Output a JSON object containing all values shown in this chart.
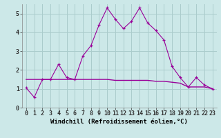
{
  "xlabel": "Windchill (Refroidissement éolien,°C)",
  "background_color": "#cce8e8",
  "grid_color": "#aacccc",
  "line_color": "#990099",
  "x_values": [
    0,
    1,
    2,
    3,
    4,
    5,
    6,
    7,
    8,
    9,
    10,
    11,
    12,
    13,
    14,
    15,
    16,
    17,
    18,
    19,
    20,
    21,
    22,
    23
  ],
  "y1_values": [
    1.05,
    0.55,
    1.5,
    1.5,
    2.3,
    1.6,
    1.5,
    2.75,
    3.3,
    4.4,
    5.3,
    4.7,
    4.2,
    4.6,
    5.3,
    4.5,
    4.1,
    3.6,
    2.2,
    1.6,
    1.1,
    1.6,
    1.2,
    1.0
  ],
  "y2_values": [
    1.5,
    1.5,
    1.5,
    1.5,
    1.5,
    1.5,
    1.5,
    1.5,
    1.5,
    1.5,
    1.5,
    1.45,
    1.45,
    1.45,
    1.45,
    1.45,
    1.4,
    1.4,
    1.35,
    1.3,
    1.1,
    1.1,
    1.1,
    1.0
  ],
  "ylim": [
    0,
    5.5
  ],
  "xlim": [
    -0.5,
    23.5
  ],
  "yticks": [
    0,
    1,
    2,
    3,
    4,
    5
  ],
  "xticks": [
    0,
    1,
    2,
    3,
    4,
    5,
    6,
    7,
    8,
    9,
    10,
    11,
    12,
    13,
    14,
    15,
    16,
    17,
    18,
    19,
    20,
    21,
    22,
    23
  ],
  "xlabel_fontsize": 6.5,
  "tick_fontsize": 6.0
}
